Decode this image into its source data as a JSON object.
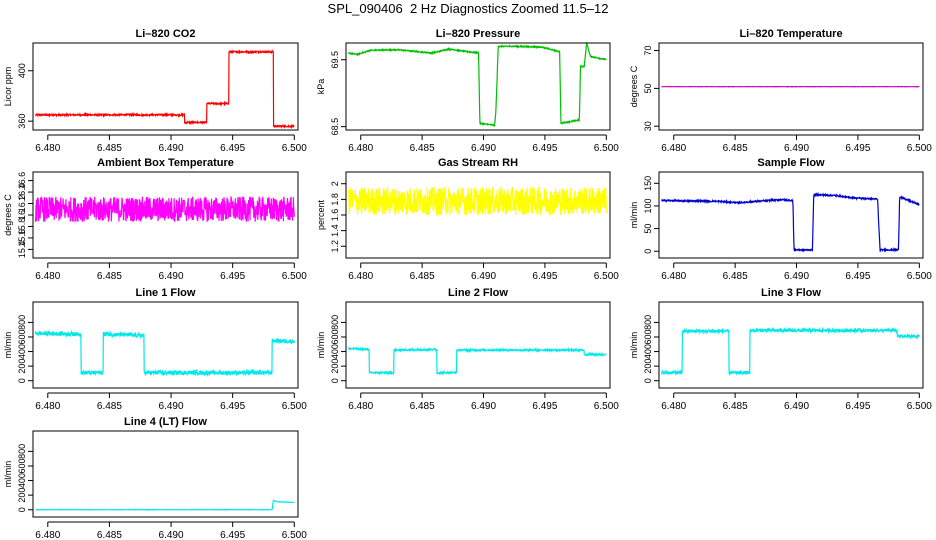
{
  "page": {
    "title": "SPL_090406  2 Hz Diagnostics Zoomed 11.5–12"
  },
  "chart_data": [
    {
      "type": "line",
      "title": "Li–820 CO2",
      "xlabel": "",
      "ylabel": "Licor ppm",
      "xlim": [
        6.4788,
        6.5003
      ],
      "ylim": [
        353,
        422
      ],
      "yticks": [
        360,
        400
      ],
      "xticks": [
        "6.480",
        "6.485",
        "6.490",
        "6.495",
        "6.500"
      ],
      "color": "#ff0000",
      "noise": 0.6,
      "series": [
        {
          "x": [
            6.479,
            6.4911,
            6.4911,
            6.4929,
            6.4929,
            6.4947,
            6.4947,
            6.4983,
            6.4983,
            6.5
          ],
          "y": [
            365,
            365,
            359,
            359,
            374,
            374,
            415,
            415,
            356,
            356
          ]
        }
      ]
    },
    {
      "type": "line",
      "title": "Li–820 Pressure",
      "xlabel": "",
      "ylabel": "kPa",
      "xlim": [
        6.4788,
        6.5003
      ],
      "ylim": [
        68.45,
        69.75
      ],
      "yticks": [
        68.5,
        69.5
      ],
      "xticks": [
        "6.480",
        "6.485",
        "6.490",
        "6.495",
        "6.500"
      ],
      "color": "#00c000",
      "noise": 0.008,
      "series": [
        {
          "x": [
            6.479,
            6.4797,
            6.4808,
            6.483,
            6.4858,
            6.4872,
            6.4887,
            6.4896,
            6.4897,
            6.4909,
            6.491,
            6.4912,
            6.4925,
            6.4947,
            6.4962,
            6.4963,
            6.4978,
            6.4979,
            6.4982,
            6.4984,
            6.4987,
            6.5
          ],
          "y": [
            69.6,
            69.58,
            69.64,
            69.65,
            69.6,
            69.66,
            69.62,
            69.6,
            68.55,
            68.52,
            68.7,
            69.7,
            69.7,
            69.69,
            69.62,
            68.55,
            68.6,
            69.4,
            69.4,
            69.75,
            69.55,
            69.5
          ]
        }
      ]
    },
    {
      "type": "line",
      "title": "Li–820 Temperature",
      "xlabel": "",
      "ylabel": "degrees C",
      "xlim": [
        6.4788,
        6.5003
      ],
      "ylim": [
        28,
        74
      ],
      "yticks": [
        30,
        50,
        70
      ],
      "xticks": [
        "6.480",
        "6.485",
        "6.490",
        "6.495",
        "6.500"
      ],
      "color": "#cc00cc",
      "noise": 0.05,
      "series": [
        {
          "x": [
            6.479,
            6.5
          ],
          "y": [
            50.9,
            50.9
          ]
        }
      ]
    },
    {
      "type": "line",
      "title": "Ambient Box Temperature",
      "xlabel": "",
      "ylabel": "degrees C",
      "xlim": [
        6.4788,
        6.5003
      ],
      "ylim": [
        15.25,
        16.75
      ],
      "yticks": [
        15.4,
        15.6,
        15.8,
        16.0,
        16.2,
        16.4,
        16.6
      ],
      "xticks": [
        "6.480",
        "6.485",
        "6.490",
        "6.495",
        "6.500"
      ],
      "color": "#ff00ff",
      "noise": 0.22,
      "series": [
        {
          "x": [
            6.479,
            6.5
          ],
          "y": [
            16.1,
            16.1
          ]
        }
      ]
    },
    {
      "type": "line",
      "title": "Gas Stream RH",
      "xlabel": "",
      "ylabel": "percent",
      "xlim": [
        6.4788,
        6.5003
      ],
      "ylim": [
        1.05,
        2.15
      ],
      "yticks": [
        1.2,
        1.4,
        1.6,
        1.8,
        2.0
      ],
      "xticks": [
        "6.480",
        "6.485",
        "6.490",
        "6.495",
        "6.500"
      ],
      "color": "#ffff00",
      "noise": 0.18,
      "series": [
        {
          "x": [
            6.479,
            6.5
          ],
          "y": [
            1.78,
            1.78
          ]
        }
      ]
    },
    {
      "type": "line",
      "title": "Sample Flow",
      "xlabel": "",
      "ylabel": "ml/min",
      "xlim": [
        6.4788,
        6.5003
      ],
      "ylim": [
        -15,
        175
      ],
      "yticks": [
        0,
        50,
        100,
        150
      ],
      "xticks": [
        "6.480",
        "6.485",
        "6.490",
        "6.495",
        "6.500"
      ],
      "color": "#0000cc",
      "noise": 1.5,
      "series": [
        {
          "x": [
            6.479,
            6.4838,
            6.4852,
            6.4888,
            6.4897,
            6.4898,
            6.4913,
            6.4914,
            6.4932,
            6.4945,
            6.4966,
            6.4968,
            6.4983,
            6.4984,
            6.5
          ],
          "y": [
            112,
            110,
            107,
            114,
            112,
            3,
            3,
            125,
            123,
            118,
            115,
            3,
            3,
            120,
            103
          ]
        }
      ]
    },
    {
      "type": "line",
      "title": "Line 1 Flow",
      "xlabel": "",
      "ylabel": "ml/min",
      "xlim": [
        6.4788,
        6.5003
      ],
      "ylim": [
        -100,
        1080
      ],
      "yticks": [
        0,
        200,
        400,
        600,
        800
      ],
      "xticks": [
        "6.480",
        "6.485",
        "6.490",
        "6.495",
        "6.500"
      ],
      "color": "#00e8e8",
      "noise": 28,
      "series": [
        {
          "x": [
            6.479,
            6.4827,
            6.4827,
            6.4845,
            6.4845,
            6.4878,
            6.4878,
            6.4982,
            6.4982,
            6.5
          ],
          "y": [
            650,
            640,
            110,
            110,
            640,
            620,
            110,
            110,
            550,
            540
          ]
        }
      ]
    },
    {
      "type": "line",
      "title": "Line 2 Flow",
      "xlabel": "",
      "ylabel": "ml/min",
      "xlim": [
        6.4788,
        6.5003
      ],
      "ylim": [
        -100,
        1080
      ],
      "yticks": [
        0,
        200,
        400,
        600,
        800
      ],
      "xticks": [
        "6.480",
        "6.485",
        "6.490",
        "6.495",
        "6.500"
      ],
      "color": "#00e8e8",
      "noise": 12,
      "series": [
        {
          "x": [
            6.479,
            6.4807,
            6.4807,
            6.4827,
            6.4827,
            6.4862,
            6.4862,
            6.4878,
            6.4878,
            6.4982,
            6.4982,
            6.5
          ],
          "y": [
            440,
            430,
            110,
            110,
            420,
            430,
            110,
            110,
            420,
            420,
            360,
            360
          ]
        }
      ]
    },
    {
      "type": "line",
      "title": "Line 3 Flow",
      "xlabel": "",
      "ylabel": "ml/min",
      "xlim": [
        6.4788,
        6.5003
      ],
      "ylim": [
        -100,
        1080
      ],
      "yticks": [
        0,
        200,
        400,
        600,
        800
      ],
      "xticks": [
        "6.480",
        "6.485",
        "6.490",
        "6.495",
        "6.500"
      ],
      "color": "#00e8e8",
      "noise": 22,
      "series": [
        {
          "x": [
            6.479,
            6.4807,
            6.4807,
            6.4845,
            6.4845,
            6.4862,
            6.4862,
            6.4982,
            6.4982,
            6.5
          ],
          "y": [
            110,
            110,
            680,
            680,
            110,
            110,
            690,
            690,
            610,
            610
          ]
        }
      ]
    },
    {
      "type": "line",
      "title": "Line 4 (LT) Flow",
      "xlabel": "",
      "ylabel": "ml/min",
      "xlim": [
        6.4788,
        6.5003
      ],
      "ylim": [
        -100,
        1080
      ],
      "yticks": [
        0,
        200,
        400,
        600,
        800
      ],
      "xticks": [
        "6.480",
        "6.485",
        "6.490",
        "6.495",
        "6.500"
      ],
      "color": "#00e8e8",
      "noise": 2,
      "series": [
        {
          "x": [
            6.479,
            6.4982,
            6.4983,
            6.4986,
            6.5
          ],
          "y": [
            0,
            0,
            130,
            110,
            100
          ]
        }
      ]
    }
  ]
}
